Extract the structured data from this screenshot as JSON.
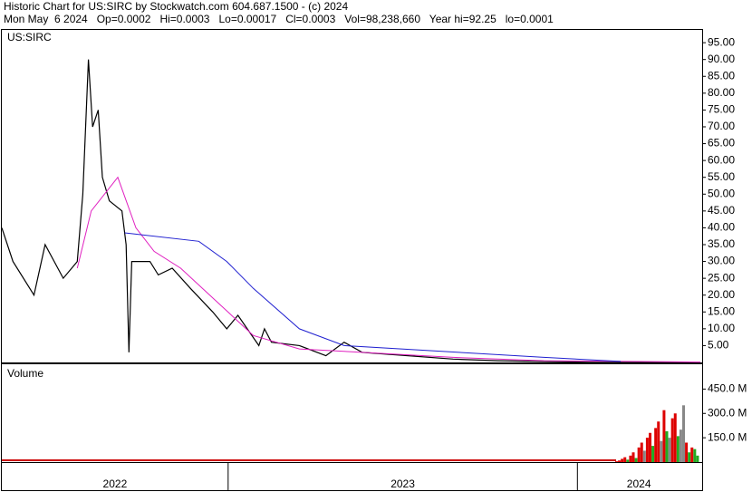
{
  "header": {
    "line1": "Historic Chart for US:SIRC by Stockwatch.com 604.687.1500 - (c) 2024",
    "line2": "Mon May  6 2024   Op=0.0002   Hi=0.0003   Lo=0.00017   Cl=0.0003   Vol=98,238,660   Year hi=92.25   lo=0.0001"
  },
  "chart_data": [
    {
      "type": "line",
      "title": "US:SIRC",
      "xlim": [
        0,
        500
      ],
      "ylim": [
        0,
        98.8
      ],
      "yticks": [
        {
          "value": 5,
          "label": "5.00"
        },
        {
          "value": 10,
          "label": "10.00"
        },
        {
          "value": 15,
          "label": "15.00"
        },
        {
          "value": 20,
          "label": "20.00"
        },
        {
          "value": 25,
          "label": "25.00"
        },
        {
          "value": 30,
          "label": "30.00"
        },
        {
          "value": 35,
          "label": "35.00"
        },
        {
          "value": 40,
          "label": "40.00"
        },
        {
          "value": 45,
          "label": "45.00"
        },
        {
          "value": 50,
          "label": "50.00"
        },
        {
          "value": 55,
          "label": "55.00"
        },
        {
          "value": 60,
          "label": "60.00"
        },
        {
          "value": 65,
          "label": "65.00"
        },
        {
          "value": 70,
          "label": "70.00"
        },
        {
          "value": 75,
          "label": "75.00"
        },
        {
          "value": 80,
          "label": "80.00"
        },
        {
          "value": 85,
          "label": "85.00"
        },
        {
          "value": 90,
          "label": "90.00"
        },
        {
          "value": 95,
          "label": "95.00"
        }
      ],
      "series": [
        {
          "color": "#000000",
          "x": [
            0,
            8,
            23,
            31,
            44,
            54,
            58,
            62,
            65,
            69,
            72,
            77,
            86,
            89,
            91,
            93,
            96,
            106,
            112,
            122,
            135,
            151,
            161,
            169,
            184,
            188,
            193,
            213,
            232,
            245,
            258,
            291,
            323,
            355,
            420,
            500
          ],
          "values": [
            40,
            30,
            20,
            35,
            25,
            30,
            50,
            90,
            70,
            75,
            55,
            48,
            45,
            35,
            3,
            30,
            30,
            30,
            26,
            28,
            22,
            15,
            10,
            14,
            5,
            10,
            6,
            5,
            2,
            6,
            3,
            2,
            1,
            0.5,
            0.05,
            0.0003
          ]
        },
        {
          "color": "#e020c0",
          "x": [
            54,
            64,
            83,
            96,
            109,
            128,
            154,
            180,
            213,
            258,
            323,
            388,
            500
          ],
          "values": [
            28,
            45,
            55,
            40,
            33,
            28,
            18,
            8,
            4,
            3,
            1.5,
            0.5,
            0.1
          ]
        },
        {
          "color": "#2020d0",
          "x": [
            88,
            141,
            161,
            180,
            213,
            245,
            388,
            443
          ],
          "values": [
            38.5,
            36,
            30,
            22,
            10,
            5,
            1.5,
            0.3
          ]
        }
      ]
    },
    {
      "type": "bar",
      "title": "Volume",
      "xlim": [
        0,
        500
      ],
      "ylim": [
        0,
        603000000
      ],
      "yticks": [
        {
          "value": 150000000,
          "label": "150.0 M"
        },
        {
          "value": 300000000,
          "label": "300.0 M"
        },
        {
          "value": 450000000,
          "label": "450.0 M"
        }
      ],
      "xticks": [
        {
          "value": 0,
          "label": "2022"
        },
        {
          "value": 162,
          "label": "2023"
        },
        {
          "value": 412,
          "label": "2024"
        }
      ],
      "x": [
        440,
        442,
        444,
        446,
        448,
        450,
        452,
        454,
        456,
        458,
        460,
        462,
        464,
        466,
        468,
        470,
        472,
        474,
        476,
        478,
        480,
        482,
        484,
        486,
        488,
        490,
        492,
        494,
        496,
        498
      ],
      "values": [
        5000000,
        10000000,
        20000000,
        30000000,
        15000000,
        40000000,
        60000000,
        25000000,
        90000000,
        120000000,
        70000000,
        150000000,
        180000000,
        100000000,
        210000000,
        250000000,
        130000000,
        320000000,
        190000000,
        150000000,
        270000000,
        300000000,
        160000000,
        200000000,
        350000000,
        120000000,
        60000000,
        90000000,
        80000000,
        40000000
      ],
      "colors": [
        "#dd0000",
        "#dd0000",
        "#dd0000",
        "#dd0000",
        "#22aa22",
        "#dd0000",
        "#dd0000",
        "#22aa22",
        "#dd0000",
        "#dd0000",
        "#888888",
        "#dd0000",
        "#dd0000",
        "#22aa22",
        "#dd0000",
        "#dd0000",
        "#888888",
        "#dd0000",
        "#22aa22",
        "#888888",
        "#dd0000",
        "#dd0000",
        "#22aa22",
        "#888888",
        "#888888",
        "#dd0000",
        "#22aa22",
        "#dd0000",
        "#22aa22",
        "#22aa22"
      ]
    }
  ]
}
